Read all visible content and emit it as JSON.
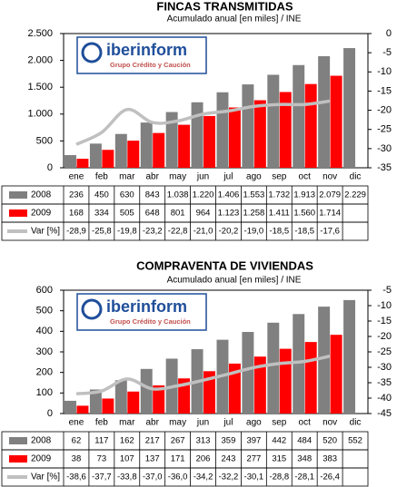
{
  "chart_data": [
    {
      "type": "bar",
      "title": "FINCAS TRANSMITIDAS",
      "subtitle": "Acumulado anual [en miles] / INE",
      "annotations": [
        "iberinform",
        "Grupo Crédito y Caución"
      ],
      "categories": [
        "ene",
        "feb",
        "mar",
        "abr",
        "may",
        "jun",
        "jul",
        "ago",
        "sep",
        "oct",
        "nov",
        "dic"
      ],
      "series": [
        {
          "name": "2008",
          "color": "#808080",
          "values": [
            236,
            450,
            630,
            843,
            1038,
            1220,
            1406,
            1553,
            1732,
            1913,
            2079,
            2229
          ],
          "value_labels": [
            "236",
            "450",
            "630",
            "843",
            "1.038",
            "1.220",
            "1.406",
            "1.553",
            "1.732",
            "1.913",
            "2.079",
            "2.229"
          ]
        },
        {
          "name": "2009",
          "color": "#ff0000",
          "values": [
            168,
            334,
            505,
            648,
            801,
            964,
            1123,
            1258,
            1411,
            1560,
            1714,
            null
          ],
          "value_labels": [
            "168",
            "334",
            "505",
            "648",
            "801",
            "964",
            "1.123",
            "1.258",
            "1.411",
            "1.560",
            "1.714",
            null
          ]
        },
        {
          "name": "Var [%]",
          "type": "line",
          "axis": "y2",
          "color": "#c0c0c0",
          "values": [
            -28.9,
            -25.8,
            -19.8,
            -23.2,
            -22.8,
            -21.0,
            -20.2,
            -19.0,
            -18.5,
            -18.5,
            -17.6,
            null
          ],
          "value_labels": [
            "-28,9",
            "-25,8",
            "-19,8",
            "-23,2",
            "-22,8",
            "-21,0",
            "-20,2",
            "-19,0",
            "-18,5",
            "-18,5",
            "-17,6",
            null
          ]
        }
      ],
      "ylim": [
        0,
        2500
      ],
      "yticks": [
        0,
        500,
        {
          "value": 1000,
          "label": "1.000"
        },
        {
          "value": 1500,
          "label": "1.500"
        },
        {
          "value": 2000,
          "label": "2.000"
        },
        {
          "value": 2500,
          "label": "2.500"
        }
      ],
      "y2lim": [
        -35,
        0
      ],
      "y2ticks": [
        0,
        -5,
        -10,
        -15,
        -20,
        -25,
        -30,
        -35
      ]
    },
    {
      "type": "bar",
      "title": "COMPRAVENTA DE VIVIENDAS",
      "subtitle": "Acumulado anual [en miles] / INE",
      "annotations": [
        "iberinform",
        "Grupo Crédito y Caución"
      ],
      "categories": [
        "ene",
        "feb",
        "mar",
        "abr",
        "may",
        "jun",
        "jul",
        "ago",
        "sep",
        "oct",
        "nov",
        "dic"
      ],
      "series": [
        {
          "name": "2008",
          "color": "#808080",
          "values": [
            62,
            117,
            162,
            217,
            267,
            313,
            359,
            397,
            442,
            484,
            520,
            552
          ]
        },
        {
          "name": "2009",
          "color": "#ff0000",
          "values": [
            38,
            73,
            107,
            137,
            171,
            206,
            243,
            277,
            315,
            348,
            383,
            null
          ]
        },
        {
          "name": "Var [%]",
          "type": "line",
          "axis": "y2",
          "color": "#c0c0c0",
          "values": [
            -38.6,
            -37.7,
            -33.8,
            -37.0,
            -36.0,
            -34.2,
            -32.2,
            -30.1,
            -28.8,
            -28.1,
            -26.4,
            null
          ],
          "value_labels": [
            "-38,6",
            "-37,7",
            "-33,8",
            "-37,0",
            "-36,0",
            "-34,2",
            "-32,2",
            "-30,1",
            "-28,8",
            "-28,1",
            "-26,4",
            null
          ]
        }
      ],
      "ylim": [
        0,
        600
      ],
      "yticks": [
        0,
        100,
        200,
        300,
        400,
        500,
        600
      ],
      "y2lim": [
        -45,
        -5
      ],
      "y2ticks": [
        -5,
        -10,
        -15,
        -20,
        -25,
        -30,
        -35,
        -40,
        -45
      ]
    }
  ]
}
